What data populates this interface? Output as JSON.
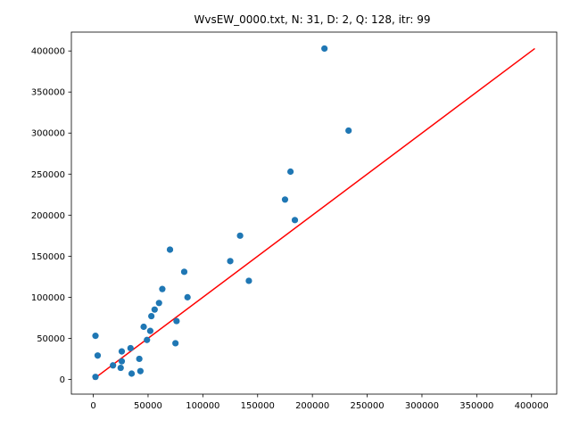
{
  "chart_data": {
    "type": "scatter",
    "title": "WvsEW_0000.txt, N: 31, D: 2, Q: 128, itr: 99",
    "xlabel": "",
    "ylabel": "",
    "xlim": [
      -20000,
      423000
    ],
    "ylim": [
      -18000,
      423000
    ],
    "x_ticks": [
      0,
      50000,
      100000,
      150000,
      200000,
      250000,
      300000,
      350000,
      400000
    ],
    "y_ticks": [
      0,
      50000,
      100000,
      150000,
      200000,
      250000,
      300000,
      350000,
      400000
    ],
    "grid": false,
    "legend": "none",
    "point_color": "#1f77b4",
    "line_color": "#ff0000",
    "reference_line": {
      "x": [
        0,
        403000
      ],
      "y": [
        0,
        403000
      ]
    },
    "points": [
      {
        "x": 2000,
        "y": 3000
      },
      {
        "x": 2000,
        "y": 53000
      },
      {
        "x": 4000,
        "y": 29000
      },
      {
        "x": 18000,
        "y": 17000
      },
      {
        "x": 25000,
        "y": 14000
      },
      {
        "x": 26000,
        "y": 22000
      },
      {
        "x": 26000,
        "y": 34000
      },
      {
        "x": 34000,
        "y": 38000
      },
      {
        "x": 35000,
        "y": 7000
      },
      {
        "x": 42000,
        "y": 25000
      },
      {
        "x": 43000,
        "y": 10000
      },
      {
        "x": 46000,
        "y": 64000
      },
      {
        "x": 49000,
        "y": 48000
      },
      {
        "x": 52000,
        "y": 59000
      },
      {
        "x": 53000,
        "y": 77000
      },
      {
        "x": 56000,
        "y": 85000
      },
      {
        "x": 60000,
        "y": 93000
      },
      {
        "x": 63000,
        "y": 110000
      },
      {
        "x": 70000,
        "y": 158000
      },
      {
        "x": 75000,
        "y": 44000
      },
      {
        "x": 76000,
        "y": 71000
      },
      {
        "x": 83000,
        "y": 131000
      },
      {
        "x": 86000,
        "y": 100000
      },
      {
        "x": 125000,
        "y": 144000
      },
      {
        "x": 134000,
        "y": 175000
      },
      {
        "x": 142000,
        "y": 120000
      },
      {
        "x": 175000,
        "y": 219000
      },
      {
        "x": 180000,
        "y": 253000
      },
      {
        "x": 184000,
        "y": 194000
      },
      {
        "x": 211000,
        "y": 403000
      },
      {
        "x": 233000,
        "y": 303000
      }
    ]
  }
}
